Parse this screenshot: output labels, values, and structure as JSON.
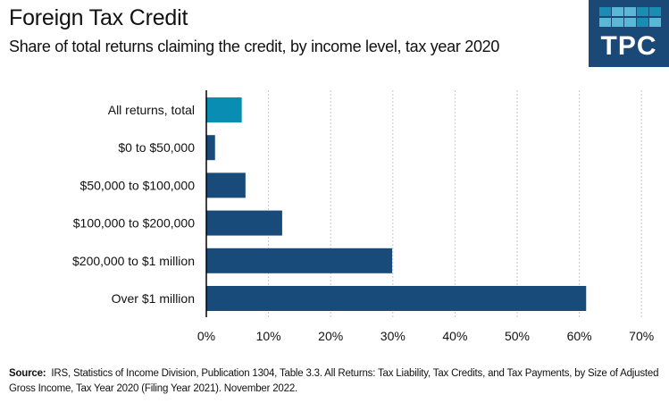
{
  "header": {
    "title": "Foreign Tax Credit",
    "subtitle": "Share of total returns claiming the credit, by income level, tax year 2020"
  },
  "logo": {
    "text": "TPC",
    "background": "#1a4877",
    "squares": [
      "#1a8db3",
      "#5ab8d6",
      "#5ab8d6",
      "#1a8db3",
      "#1a8db3",
      "#5ab8d6",
      "#5ab8d6",
      "#5ab8d6",
      "#1a8db3",
      "#5ab8d6"
    ]
  },
  "colors": {
    "highlight": "#0a8db3",
    "bar": "#184a7a",
    "grid": "#c8c8c8",
    "axis": "#000000"
  },
  "chart_data": {
    "type": "bar",
    "orientation": "horizontal",
    "title": "Foreign Tax Credit",
    "subtitle": "Share of total returns claiming the credit, by income level, tax year 2020",
    "categories": [
      "All returns, total",
      "$0 to $50,000",
      "$50,000 to $100,000",
      "$100,000 to $200,000",
      "$200,000 to $1 million",
      "Over $1 million"
    ],
    "values": [
      5.7,
      1.4,
      6.3,
      12.2,
      29.9,
      61.1
    ],
    "highlight_index": 0,
    "xlabel": "",
    "ylabel": "",
    "xlim": [
      0,
      70
    ],
    "xticks": [
      0,
      10,
      20,
      30,
      40,
      50,
      60,
      70
    ],
    "xtick_labels": [
      "0%",
      "10%",
      "20%",
      "30%",
      "40%",
      "50%",
      "60%",
      "70%"
    ],
    "grid": true,
    "legend": "none"
  },
  "source": {
    "label": "Source:",
    "text": "IRS, Statistics of Income Division, Publication 1304, Table 3.3.  All Returns: Tax Liability, Tax Credits, and Tax Payments, by Size of Adjusted Gross Income, Tax Year 2020  (Filing Year 2021). November 2022."
  }
}
